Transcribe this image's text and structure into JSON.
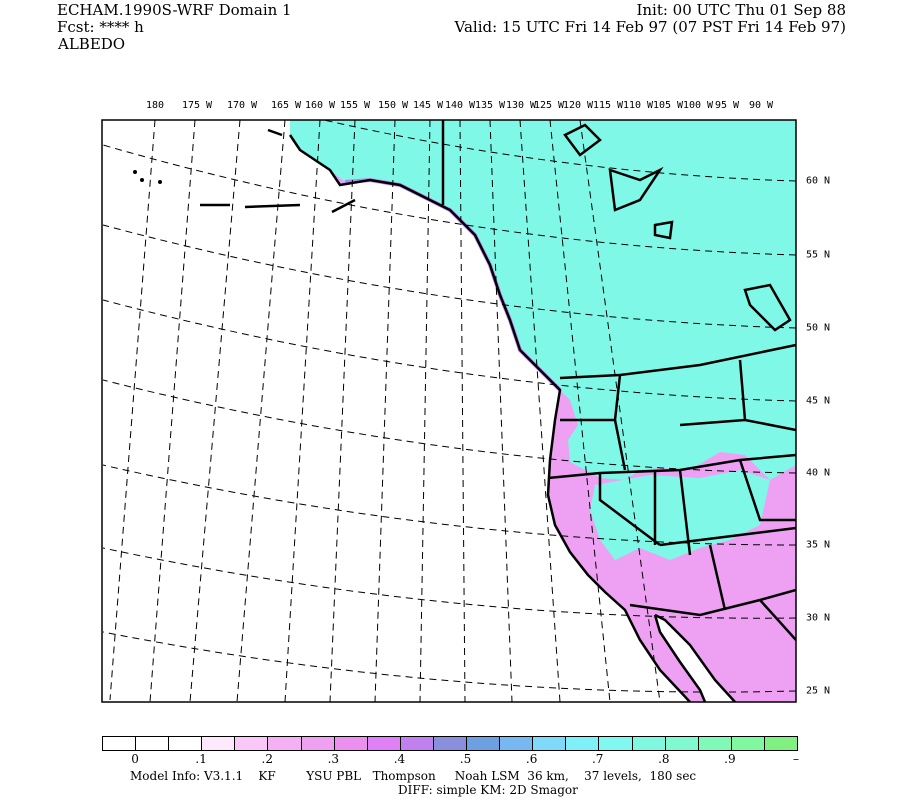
{
  "header": {
    "title": "ECHAM.1990S-WRF Domain 1",
    "forecast": "Fcst: **** h",
    "field": "ALBEDO",
    "init": "Init: 00 UTC Thu 01 Sep 88",
    "valid": "Valid: 15 UTC Fri 14 Feb 97 (07 PST Fri 14 Feb 97)"
  },
  "map": {
    "top_labels": [
      "180",
      "175 W",
      "170 W",
      "165 W",
      "160 W",
      "155 W",
      "150 W",
      "145 W",
      "140 W",
      "135 W",
      "130 W",
      "125 W",
      "120 W",
      "115 W",
      "110 W",
      "105 W",
      "100 W",
      "95 W",
      "90 W"
    ],
    "right_labels": [
      "60 N",
      "55 N",
      "50 N",
      "45 N",
      "40 N",
      "35 N",
      "30 N",
      "25 N"
    ],
    "colors": {
      "high_albedo": "#80f8e8",
      "low_albedo": "#eea0f2",
      "ocean": "#ffffff",
      "boundary": "#000000"
    }
  },
  "colorbar": {
    "colors": [
      "#ffffff",
      "#ffffff",
      "#ffffff",
      "#fde8fc",
      "#f9c8f6",
      "#f5b0f4",
      "#f0a0f0",
      "#ec90f0",
      "#e080f6",
      "#c080ee",
      "#8890dc",
      "#6ca0e0",
      "#78b8f0",
      "#80d8fa",
      "#80f0f8",
      "#80f8f0",
      "#80f8e0",
      "#80f8d0",
      "#80f8b8",
      "#80f8a0",
      "#80f080"
    ],
    "labels": [
      "0",
      ".1",
      ".2",
      ".3",
      ".4",
      ".5",
      ".6",
      ".7",
      ".8",
      ".9",
      "–"
    ]
  },
  "footer": {
    "model_info": "Model Info: V3.1.1    KF        YSU PBL   Thompson     Noah LSM  36 km,    37 levels,  180 sec",
    "diff": "DIFF: simple KM: 2D Smagor"
  }
}
